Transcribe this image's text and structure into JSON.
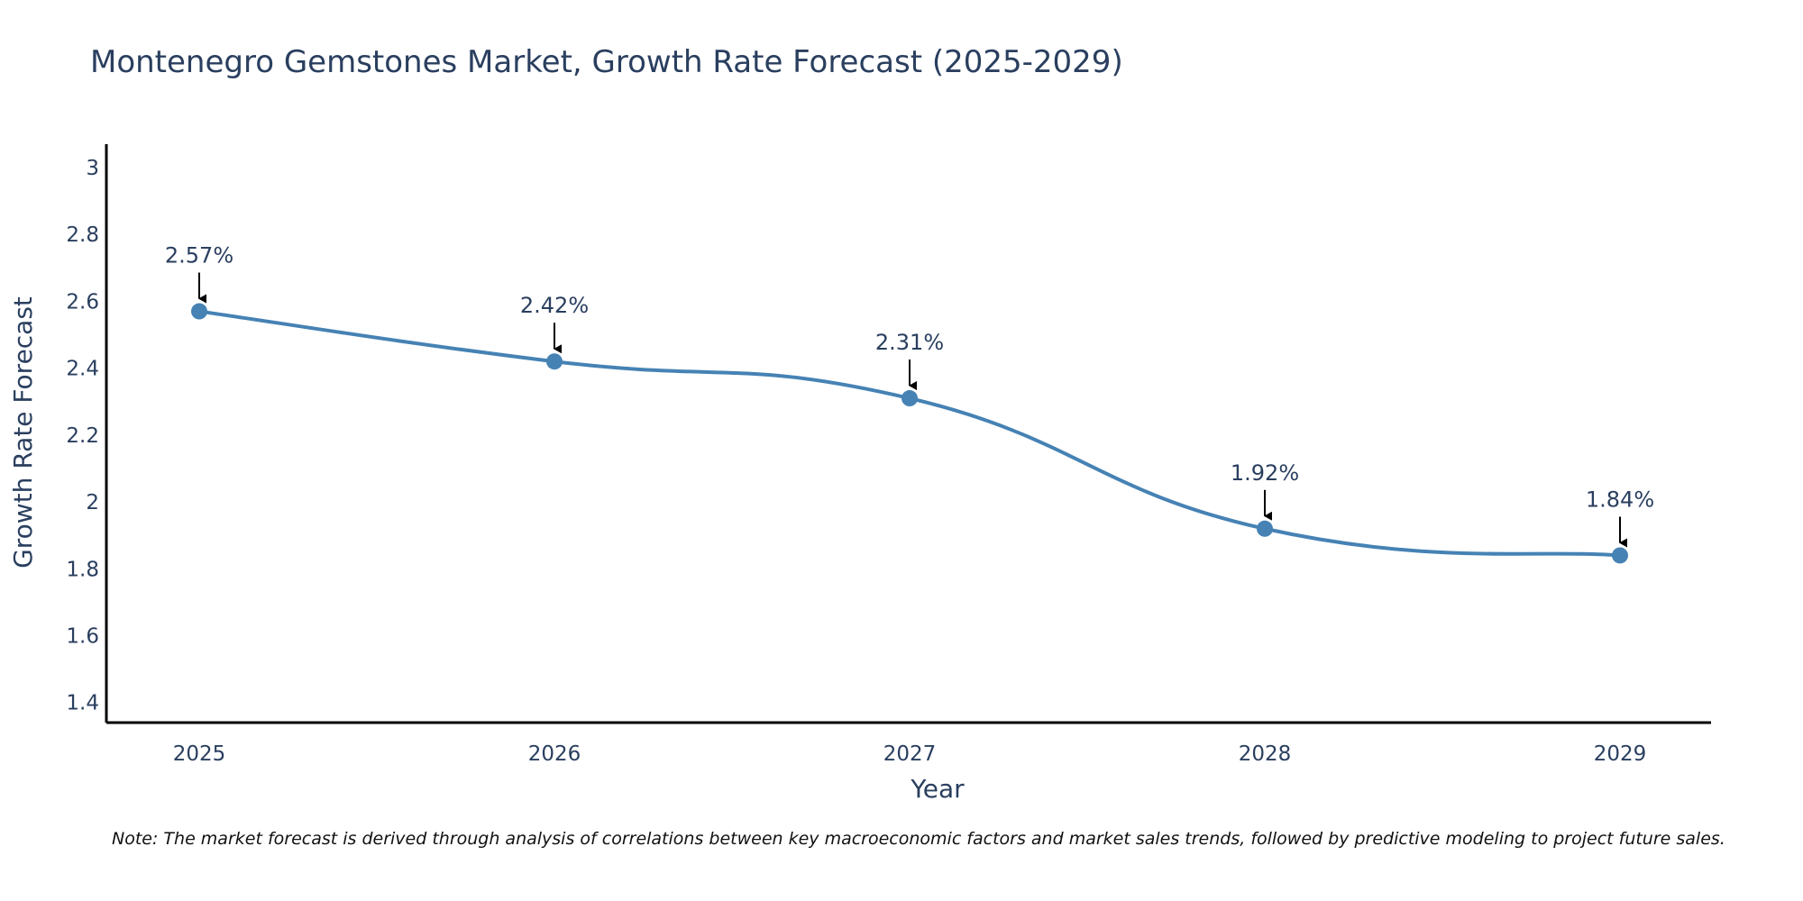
{
  "chart_data": {
    "type": "line",
    "title": "Montenegro Gemstones Market, Growth Rate Forecast (2025-2029)",
    "xlabel": "Year",
    "ylabel": "Growth Rate Forecast",
    "categories": [
      "2025",
      "2026",
      "2027",
      "2028",
      "2029"
    ],
    "series": [
      {
        "name": "Growth Rate Forecast",
        "values": [
          2.57,
          2.42,
          2.31,
          1.92,
          1.84
        ],
        "labels": [
          "2.57%",
          "2.42%",
          "2.31%",
          "1.92%",
          "1.84%"
        ],
        "color": "#4682b4"
      }
    ],
    "ylim": [
      1.34,
      3.07
    ],
    "yticks": [
      1.4,
      1.6,
      1.8,
      2,
      2.2,
      2.4,
      2.6,
      2.8,
      3
    ],
    "ytick_labels": [
      "1.4",
      "1.6",
      "1.8",
      "2",
      "2.2",
      "2.4",
      "2.6",
      "2.8",
      "3"
    ],
    "grid": false,
    "annotation_arrows": true,
    "note": "Note: The market forecast is derived through analysis of correlations between key macroeconomic factors and market sales trends, followed by predictive modeling to project future sales."
  }
}
